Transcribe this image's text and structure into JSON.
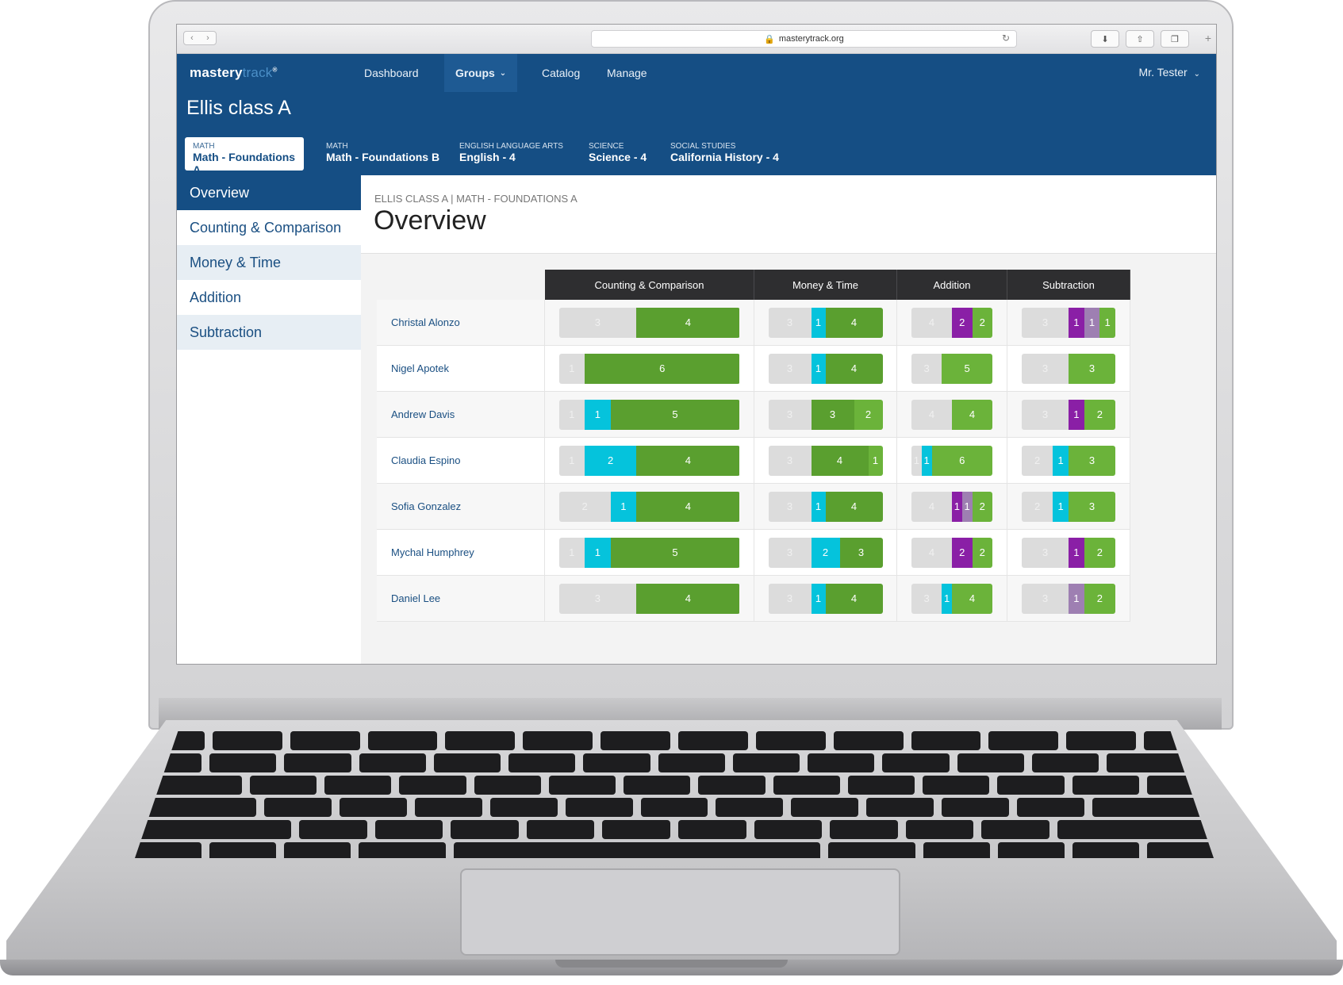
{
  "browser": {
    "url": "masterytrack.org"
  },
  "app": {
    "logo_primary": "mastery",
    "logo_secondary": "track",
    "nav": [
      "Dashboard",
      "Groups",
      "Catalog",
      "Manage"
    ],
    "user": "Mr. Tester"
  },
  "class": {
    "name": "Ellis class A",
    "tabs": [
      {
        "category": "MATH",
        "name": "Math - Foundations A"
      },
      {
        "category": "MATH",
        "name": "Math - Foundations B"
      },
      {
        "category": "ENGLISH LANGUAGE ARTS",
        "name": "English - 4"
      },
      {
        "category": "SCIENCE",
        "name": "Science - 4"
      },
      {
        "category": "SOCIAL STUDIES",
        "name": "California History - 4"
      }
    ]
  },
  "sidebar": [
    "Overview",
    "Counting & Comparison",
    "Money & Time",
    "Addition",
    "Subtraction"
  ],
  "page": {
    "breadcrumb": "ELLIS CLASS A | MATH - FOUNDATIONS A",
    "title": "Overview"
  },
  "grid": {
    "columns": [
      "Counting & Comparison",
      "Money & Time",
      "Addition",
      "Subtraction"
    ],
    "legend_colors": {
      "not_started": "#dcdcdc",
      "in_progress": "#05c3dc",
      "mastered": "#5a9f2f",
      "mastered_alt": "#6bb33a",
      "struggling": "#8a1fa6",
      "struggling_alt": "#9e7fb2"
    },
    "students": [
      {
        "name": "Christal Alonzo",
        "cells": [
          [
            [
              0,
              3
            ],
            [
              2,
              4
            ]
          ],
          [
            [
              0,
              3
            ],
            [
              1,
              1
            ],
            [
              2,
              4
            ]
          ],
          [
            [
              0,
              4
            ],
            [
              4,
              2
            ],
            [
              3,
              2
            ]
          ],
          [
            [
              0,
              3
            ],
            [
              4,
              1
            ],
            [
              5,
              1
            ],
            [
              3,
              1
            ]
          ]
        ]
      },
      {
        "name": "Nigel Apotek",
        "cells": [
          [
            [
              0,
              1
            ],
            [
              2,
              6
            ]
          ],
          [
            [
              0,
              3
            ],
            [
              1,
              1
            ],
            [
              2,
              4
            ]
          ],
          [
            [
              0,
              3
            ],
            [
              3,
              5
            ]
          ],
          [
            [
              0,
              3
            ],
            [
              3,
              3
            ]
          ]
        ]
      },
      {
        "name": "Andrew Davis",
        "cells": [
          [
            [
              0,
              1
            ],
            [
              1,
              1
            ],
            [
              2,
              5
            ]
          ],
          [
            [
              0,
              3
            ],
            [
              2,
              3
            ],
            [
              3,
              2
            ]
          ],
          [
            [
              0,
              4
            ],
            [
              3,
              4
            ]
          ],
          [
            [
              0,
              3
            ],
            [
              4,
              1
            ],
            [
              3,
              2
            ]
          ]
        ]
      },
      {
        "name": "Claudia Espino",
        "cells": [
          [
            [
              0,
              1
            ],
            [
              1,
              2
            ],
            [
              2,
              4
            ]
          ],
          [
            [
              0,
              3
            ],
            [
              2,
              4
            ],
            [
              3,
              1
            ]
          ],
          [
            [
              0,
              1
            ],
            [
              1,
              1
            ],
            [
              3,
              6
            ]
          ],
          [
            [
              0,
              2
            ],
            [
              1,
              1
            ],
            [
              3,
              3
            ]
          ]
        ]
      },
      {
        "name": "Sofia Gonzalez",
        "cells": [
          [
            [
              0,
              2
            ],
            [
              1,
              1
            ],
            [
              2,
              4
            ]
          ],
          [
            [
              0,
              3
            ],
            [
              1,
              1
            ],
            [
              2,
              4
            ]
          ],
          [
            [
              0,
              4
            ],
            [
              4,
              1
            ],
            [
              5,
              1
            ],
            [
              3,
              2
            ]
          ],
          [
            [
              0,
              2
            ],
            [
              1,
              1
            ],
            [
              3,
              3
            ]
          ]
        ]
      },
      {
        "name": "Mychal Humphrey",
        "cells": [
          [
            [
              0,
              1
            ],
            [
              1,
              1
            ],
            [
              2,
              5
            ]
          ],
          [
            [
              0,
              3
            ],
            [
              1,
              2
            ],
            [
              2,
              3
            ]
          ],
          [
            [
              0,
              4
            ],
            [
              4,
              2
            ],
            [
              3,
              2
            ]
          ],
          [
            [
              0,
              3
            ],
            [
              4,
              1
            ],
            [
              3,
              2
            ]
          ]
        ]
      },
      {
        "name": "Daniel Lee",
        "cells": [
          [
            [
              0,
              3
            ],
            [
              2,
              4
            ]
          ],
          [
            [
              0,
              3
            ],
            [
              1,
              1
            ],
            [
              2,
              4
            ]
          ],
          [
            [
              0,
              3
            ],
            [
              1,
              1
            ],
            [
              3,
              4
            ]
          ],
          [
            [
              0,
              3
            ],
            [
              5,
              1
            ],
            [
              3,
              2
            ]
          ]
        ]
      }
    ]
  }
}
